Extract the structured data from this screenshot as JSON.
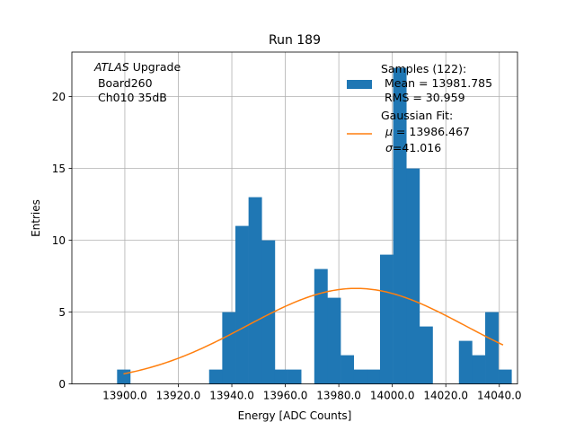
{
  "chart_data": {
    "type": "bar",
    "title": "Run 189",
    "xlabel": "Energy [ADC Counts]",
    "ylabel": "Entries",
    "xlim": [
      13880.2,
      14046.8
    ],
    "ylim": [
      0,
      23.1
    ],
    "grid": true,
    "xticks": [
      13900.0,
      13920.0,
      13940.0,
      13960.0,
      13980.0,
      14000.0,
      14020.0,
      14040.0
    ],
    "xtick_labels": [
      "13900.0",
      "13920.0",
      "13940.0",
      "13960.0",
      "13980.0",
      "14000.0",
      "14020.0",
      "14040.0"
    ],
    "yticks": [
      0,
      5,
      10,
      15,
      20
    ],
    "ytick_labels": [
      "0",
      "5",
      "10",
      "15",
      "20"
    ],
    "bins": {
      "start": 13897.1,
      "width": 4.915,
      "counts": [
        1,
        0,
        0,
        0,
        0,
        0,
        0,
        1,
        5,
        11,
        13,
        10,
        1,
        1,
        0,
        8,
        6,
        2,
        1,
        1,
        9,
        22,
        15,
        4,
        0,
        0,
        3,
        2,
        5,
        1
      ]
    },
    "fit": {
      "mu": 13986.467,
      "sigma": 41.016,
      "x_range": [
        13899.5,
        14041.4
      ],
      "peak": 6.65
    },
    "bar_color": "#1f77b4",
    "fit_color": "#ff7f0e"
  },
  "annotation": {
    "line1_italic": "ATLAS",
    "line1_rest": " Upgrade",
    "line2": " Board260",
    "line3": " Ch010 35dB"
  },
  "legend": {
    "samples_label": "Samples (122):",
    "samples_mean": " Mean = 13981.785",
    "samples_rms": " RMS = 30.959",
    "fit_label": "Gaussian Fit:",
    "fit_mu_symbol": "μ",
    "fit_mu_value": " = 13986.467",
    "fit_sigma_symbol": "σ",
    "fit_sigma_value": "=41.016",
    "placement": "top-right"
  }
}
